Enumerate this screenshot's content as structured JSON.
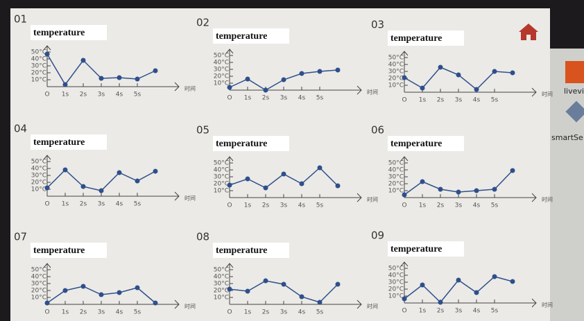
{
  "chart_data": [
    {
      "type": "line",
      "label": "01",
      "title": "temperature",
      "x_label": "时间",
      "x": [
        0,
        1,
        2,
        3,
        4,
        5,
        6
      ],
      "xlim": [
        0,
        7
      ],
      "xticks": [
        {
          "value": 0,
          "label": "O"
        },
        {
          "value": 1,
          "label": "1s"
        },
        {
          "value": 2,
          "label": "2s"
        },
        {
          "value": 3,
          "label": "3s"
        },
        {
          "value": 4,
          "label": "4s"
        },
        {
          "value": 5,
          "label": "5s"
        }
      ],
      "ylim": [
        0,
        55
      ],
      "yticks": [
        {
          "value": 10,
          "label": "10°C"
        },
        {
          "value": 20,
          "label": "20°C"
        },
        {
          "value": 30,
          "label": "30°C"
        },
        {
          "value": 40,
          "label": "40°C"
        },
        {
          "value": 50,
          "label": "50°C"
        }
      ],
      "series": [
        {
          "color": "#2f4f8c",
          "values": [
            47,
            3,
            38,
            12,
            13,
            11,
            23
          ]
        }
      ]
    },
    {
      "type": "line",
      "label": "02",
      "title": "temperature",
      "x_label": "时间",
      "x": [
        0,
        1,
        2,
        3,
        4,
        5,
        6
      ],
      "xlim": [
        0,
        7
      ],
      "xticks": [
        {
          "value": 0,
          "label": "O"
        },
        {
          "value": 1,
          "label": "1s"
        },
        {
          "value": 2,
          "label": "2s"
        },
        {
          "value": 3,
          "label": "3s"
        },
        {
          "value": 4,
          "label": "4s"
        },
        {
          "value": 5,
          "label": "5s"
        }
      ],
      "ylim": [
        0,
        55
      ],
      "yticks": [
        {
          "value": 10,
          "label": "10°C"
        },
        {
          "value": 20,
          "label": "20°C"
        },
        {
          "value": 30,
          "label": "30°C"
        },
        {
          "value": 40,
          "label": "40°C"
        },
        {
          "value": 50,
          "label": "50°C"
        }
      ],
      "series": [
        {
          "color": "#2f4f8c",
          "values": [
            4,
            16,
            0,
            15,
            24,
            27,
            29
          ]
        }
      ]
    },
    {
      "type": "line",
      "label": "03",
      "title": "temperature",
      "x_label": "时间",
      "x": [
        0,
        1,
        2,
        3,
        4,
        5,
        6
      ],
      "xlim": [
        0,
        7
      ],
      "xticks": [
        {
          "value": 0,
          "label": "O"
        },
        {
          "value": 1,
          "label": "1s"
        },
        {
          "value": 2,
          "label": "2s"
        },
        {
          "value": 3,
          "label": "3s"
        },
        {
          "value": 4,
          "label": "4s"
        },
        {
          "value": 5,
          "label": "5s"
        }
      ],
      "ylim": [
        0,
        55
      ],
      "yticks": [
        {
          "value": 10,
          "label": "10°C"
        },
        {
          "value": 20,
          "label": "20°C"
        },
        {
          "value": 30,
          "label": "30°C"
        },
        {
          "value": 40,
          "label": "40°C"
        },
        {
          "value": 50,
          "label": "50°C"
        }
      ],
      "series": [
        {
          "color": "#2f4f8c",
          "values": [
            21,
            6,
            36,
            25,
            4,
            30,
            28
          ]
        }
      ]
    },
    {
      "type": "line",
      "label": "04",
      "title": "temperature",
      "x_label": "时间",
      "x": [
        0,
        1,
        2,
        3,
        4,
        5,
        6
      ],
      "xlim": [
        0,
        7
      ],
      "xticks": [
        {
          "value": 0,
          "label": "O"
        },
        {
          "value": 1,
          "label": "1s"
        },
        {
          "value": 2,
          "label": "2s"
        },
        {
          "value": 3,
          "label": "3s"
        },
        {
          "value": 4,
          "label": "4s"
        },
        {
          "value": 5,
          "label": "5s"
        }
      ],
      "ylim": [
        0,
        55
      ],
      "yticks": [
        {
          "value": 10,
          "label": "10°C"
        },
        {
          "value": 20,
          "label": "20°C"
        },
        {
          "value": 30,
          "label": "30°C"
        },
        {
          "value": 40,
          "label": "40°C"
        },
        {
          "value": 50,
          "label": "50°C"
        }
      ],
      "series": [
        {
          "color": "#2f4f8c",
          "values": [
            12,
            38,
            14,
            8,
            34,
            22,
            36
          ]
        }
      ]
    },
    {
      "type": "line",
      "label": "05",
      "title": "temperature",
      "x_label": "时间",
      "x": [
        0,
        1,
        2,
        3,
        4,
        5,
        6
      ],
      "xlim": [
        0,
        7
      ],
      "xticks": [
        {
          "value": 0,
          "label": "O"
        },
        {
          "value": 1,
          "label": "1s"
        },
        {
          "value": 2,
          "label": "2s"
        },
        {
          "value": 3,
          "label": "3s"
        },
        {
          "value": 4,
          "label": "4s"
        },
        {
          "value": 5,
          "label": "5s"
        }
      ],
      "ylim": [
        0,
        55
      ],
      "yticks": [
        {
          "value": 10,
          "label": "10°C"
        },
        {
          "value": 20,
          "label": "20°C"
        },
        {
          "value": 30,
          "label": "30°C"
        },
        {
          "value": 40,
          "label": "40°C"
        },
        {
          "value": 50,
          "label": "50°C"
        }
      ],
      "series": [
        {
          "color": "#2f4f8c",
          "values": [
            18,
            27,
            14,
            34,
            20,
            43,
            17
          ]
        }
      ]
    },
    {
      "type": "line",
      "label": "06",
      "title": "temperature",
      "x_label": "时间",
      "x": [
        0,
        1,
        2,
        3,
        4,
        5,
        6
      ],
      "xlim": [
        0,
        7
      ],
      "xticks": [
        {
          "value": 0,
          "label": "O"
        },
        {
          "value": 1,
          "label": "1s"
        },
        {
          "value": 2,
          "label": "2s"
        },
        {
          "value": 3,
          "label": "3s"
        },
        {
          "value": 4,
          "label": "4s"
        },
        {
          "value": 5,
          "label": "5s"
        }
      ],
      "ylim": [
        0,
        55
      ],
      "yticks": [
        {
          "value": 10,
          "label": "10°C"
        },
        {
          "value": 20,
          "label": "20°C"
        },
        {
          "value": 30,
          "label": "30°C"
        },
        {
          "value": 40,
          "label": "40°C"
        },
        {
          "value": 50,
          "label": "50°C"
        }
      ],
      "series": [
        {
          "color": "#2f4f8c",
          "values": [
            4,
            23,
            12,
            8,
            10,
            12,
            39
          ]
        }
      ]
    },
    {
      "type": "line",
      "label": "07",
      "title": "temperature",
      "x_label": "时间",
      "x": [
        0,
        1,
        2,
        3,
        4,
        5,
        6
      ],
      "xlim": [
        0,
        7
      ],
      "xticks": [
        {
          "value": 0,
          "label": "O"
        },
        {
          "value": 1,
          "label": "1s"
        },
        {
          "value": 2,
          "label": "2s"
        },
        {
          "value": 3,
          "label": "3s"
        },
        {
          "value": 4,
          "label": "4s"
        },
        {
          "value": 5,
          "label": "5s"
        }
      ],
      "ylim": [
        0,
        55
      ],
      "yticks": [
        {
          "value": 10,
          "label": "10°C"
        },
        {
          "value": 20,
          "label": "20°C"
        },
        {
          "value": 30,
          "label": "30°C"
        },
        {
          "value": 40,
          "label": "40°C"
        },
        {
          "value": 50,
          "label": "50°C"
        }
      ],
      "series": [
        {
          "color": "#2f4f8c",
          "values": [
            2,
            20,
            26,
            14,
            17,
            24,
            2
          ]
        }
      ]
    },
    {
      "type": "line",
      "label": "08",
      "title": "temperature",
      "x_label": "时间",
      "x": [
        0,
        1,
        2,
        3,
        4,
        5,
        6
      ],
      "xlim": [
        0,
        7
      ],
      "xticks": [
        {
          "value": 0,
          "label": "O"
        },
        {
          "value": 1,
          "label": "1s"
        },
        {
          "value": 2,
          "label": "2s"
        },
        {
          "value": 3,
          "label": "3s"
        },
        {
          "value": 4,
          "label": "4s"
        },
        {
          "value": 5,
          "label": "5s"
        }
      ],
      "ylim": [
        0,
        55
      ],
      "yticks": [
        {
          "value": 10,
          "label": "10°C"
        },
        {
          "value": 20,
          "label": "20°C"
        },
        {
          "value": 30,
          "label": "30°C"
        },
        {
          "value": 40,
          "label": "40°C"
        },
        {
          "value": 50,
          "label": "50°C"
        }
      ],
      "series": [
        {
          "color": "#2f4f8c",
          "values": [
            22,
            19,
            34,
            29,
            11,
            3,
            29
          ]
        }
      ]
    },
    {
      "type": "line",
      "label": "09",
      "title": "temperature",
      "x_label": "时间",
      "x": [
        0,
        1,
        2,
        3,
        4,
        5,
        6
      ],
      "xlim": [
        0,
        7
      ],
      "xticks": [
        {
          "value": 0,
          "label": "O"
        },
        {
          "value": 1,
          "label": "1s"
        },
        {
          "value": 2,
          "label": "2s"
        },
        {
          "value": 3,
          "label": "3s"
        },
        {
          "value": 4,
          "label": "4s"
        },
        {
          "value": 5,
          "label": "5s"
        }
      ],
      "ylim": [
        0,
        55
      ],
      "yticks": [
        {
          "value": 10,
          "label": "10°C"
        },
        {
          "value": 20,
          "label": "20°C"
        },
        {
          "value": 30,
          "label": "30°C"
        },
        {
          "value": 40,
          "label": "40°C"
        },
        {
          "value": 50,
          "label": "50°C"
        }
      ],
      "series": [
        {
          "color": "#2f4f8c",
          "values": [
            6,
            26,
            1,
            33,
            15,
            38,
            31
          ]
        }
      ]
    }
  ],
  "sidebar": [
    "livevi",
    "smartSe"
  ]
}
